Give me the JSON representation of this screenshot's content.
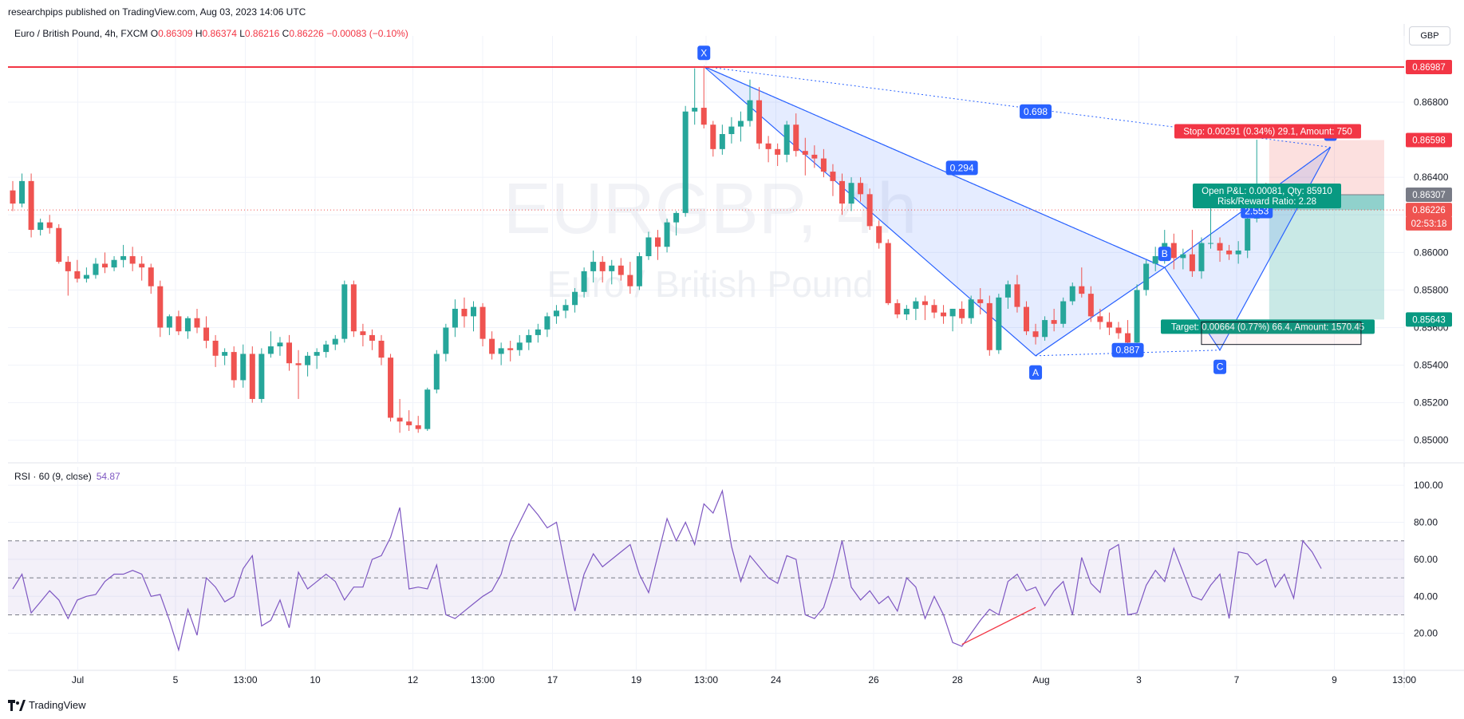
{
  "header": {
    "published": "researchpips published on TradingView.com, Aug 03, 2023 14:06 UTC"
  },
  "symbol": {
    "name": "Euro / British Pound, 4h, FXCM",
    "o_label": "O",
    "o": "0.86309",
    "h_label": "H",
    "h": "0.86374",
    "l_label": "L",
    "l": "0.86216",
    "c_label": "C",
    "c": "0.86226",
    "change": "−0.00083 (−0.10%)"
  },
  "currency": "GBP",
  "watermark": {
    "line1": "EURGBP, 4h",
    "line2": "Euro / British Pound"
  },
  "rsi": {
    "label": "RSI · 60 (9, close)",
    "value": "54.87"
  },
  "footer": {
    "brand": "TradingView"
  },
  "colors": {
    "up": "#26a69a",
    "down": "#ef5350",
    "rsi": "#7e57c2",
    "pattern": "#2962ff",
    "hline": "#f23645"
  },
  "chart_data": [
    {
      "type": "candlestick",
      "ylim": [
        0.8488,
        0.8711
      ],
      "x_tick_labels": [
        "Jul",
        "5",
        "13:00",
        "10",
        "12",
        "13:00",
        "17",
        "19",
        "13:00",
        "24",
        "26",
        "28",
        "Aug",
        "3",
        "7",
        "9",
        "13:00"
      ],
      "x_tick_positions": [
        5,
        12,
        17,
        22,
        29,
        34,
        39,
        45,
        50,
        55,
        62,
        68,
        74,
        81,
        88,
        95,
        100
      ],
      "y_tick_labels": [
        "0.85000",
        "0.85200",
        "0.85400",
        "0.85600",
        "0.85800",
        "0.86000",
        "0.86200",
        "0.86400",
        "0.86800"
      ],
      "y_tick_values": [
        0.85,
        0.852,
        0.854,
        0.856,
        0.858,
        0.86,
        0.862,
        0.864,
        0.868
      ],
      "price_labels": [
        {
          "text": "0.86987",
          "value": 0.86987,
          "color": "#f23645"
        },
        {
          "text": "0.86598",
          "value": 0.86598,
          "color": "#f23645"
        },
        {
          "text": "0.86307",
          "value": 0.86307,
          "color": "#787b86"
        },
        {
          "text": "0.86226",
          "value": 0.86226,
          "color": "#ef5350"
        },
        {
          "text": "02:53:18",
          "value": 0.86155,
          "color": "#ef5350"
        },
        {
          "text": "0.85643",
          "value": 0.85643,
          "color": "#089981"
        }
      ],
      "horizontal_line": 0.86987,
      "ohlc": [
        [
          0.8633,
          0.8638,
          0.8622,
          0.8626
        ],
        [
          0.8626,
          0.8642,
          0.8624,
          0.8638
        ],
        [
          0.8638,
          0.8642,
          0.8608,
          0.8612
        ],
        [
          0.8612,
          0.8618,
          0.8609,
          0.8616
        ],
        [
          0.8616,
          0.862,
          0.861,
          0.8613
        ],
        [
          0.8613,
          0.8615,
          0.8594,
          0.8595
        ],
        [
          0.8595,
          0.8598,
          0.8577,
          0.859
        ],
        [
          0.859,
          0.8596,
          0.8584,
          0.8586
        ],
        [
          0.8586,
          0.8592,
          0.8584,
          0.8588
        ],
        [
          0.8588,
          0.8597,
          0.8586,
          0.8594
        ],
        [
          0.8594,
          0.86,
          0.8589,
          0.8592
        ],
        [
          0.8592,
          0.8598,
          0.859,
          0.8596
        ],
        [
          0.8596,
          0.8604,
          0.8592,
          0.8598
        ],
        [
          0.8598,
          0.8603,
          0.859,
          0.8594
        ],
        [
          0.8594,
          0.8598,
          0.8585,
          0.8592
        ],
        [
          0.8592,
          0.8594,
          0.8578,
          0.8582
        ],
        [
          0.8582,
          0.8585,
          0.8555,
          0.856
        ],
        [
          0.856,
          0.8567,
          0.8556,
          0.8566
        ],
        [
          0.8566,
          0.8569,
          0.8556,
          0.8558
        ],
        [
          0.8558,
          0.8566,
          0.8554,
          0.8565
        ],
        [
          0.8565,
          0.857,
          0.8557,
          0.856
        ],
        [
          0.856,
          0.8566,
          0.8549,
          0.8553
        ],
        [
          0.8553,
          0.8556,
          0.8539,
          0.8545
        ],
        [
          0.8545,
          0.8549,
          0.854,
          0.8547
        ],
        [
          0.8547,
          0.855,
          0.8528,
          0.8532
        ],
        [
          0.8532,
          0.8551,
          0.8528,
          0.8546
        ],
        [
          0.8546,
          0.855,
          0.852,
          0.8522
        ],
        [
          0.8522,
          0.8549,
          0.852,
          0.8546
        ],
        [
          0.8546,
          0.8558,
          0.8544,
          0.855
        ],
        [
          0.855,
          0.8555,
          0.8545,
          0.8552
        ],
        [
          0.8552,
          0.8556,
          0.8537,
          0.8541
        ],
        [
          0.8541,
          0.8548,
          0.8522,
          0.854
        ],
        [
          0.854,
          0.8547,
          0.8534,
          0.8545
        ],
        [
          0.8545,
          0.8549,
          0.8538,
          0.8547
        ],
        [
          0.8547,
          0.8553,
          0.8544,
          0.8551
        ],
        [
          0.8551,
          0.8556,
          0.8548,
          0.8554
        ],
        [
          0.8554,
          0.8585,
          0.8552,
          0.8583
        ],
        [
          0.8583,
          0.8585,
          0.8555,
          0.8558
        ],
        [
          0.8558,
          0.8562,
          0.855,
          0.8556
        ],
        [
          0.8556,
          0.8559,
          0.8548,
          0.8553
        ],
        [
          0.8553,
          0.8556,
          0.854,
          0.8544
        ],
        [
          0.8544,
          0.8546,
          0.851,
          0.8512
        ],
        [
          0.8512,
          0.8522,
          0.8504,
          0.851
        ],
        [
          0.851,
          0.8516,
          0.8505,
          0.8508
        ],
        [
          0.8508,
          0.8513,
          0.8504,
          0.8506
        ],
        [
          0.8506,
          0.8528,
          0.8505,
          0.8527
        ],
        [
          0.8527,
          0.8548,
          0.8525,
          0.8546
        ],
        [
          0.8546,
          0.8562,
          0.8542,
          0.856
        ],
        [
          0.856,
          0.8575,
          0.8555,
          0.857
        ],
        [
          0.857,
          0.8576,
          0.856,
          0.8566
        ],
        [
          0.8566,
          0.8574,
          0.8558,
          0.8571
        ],
        [
          0.8571,
          0.8573,
          0.855,
          0.8554
        ],
        [
          0.8554,
          0.8558,
          0.8543,
          0.8546
        ],
        [
          0.8546,
          0.8552,
          0.854,
          0.8549
        ],
        [
          0.8549,
          0.8553,
          0.8542,
          0.8548
        ],
        [
          0.8548,
          0.8556,
          0.8545,
          0.8552
        ],
        [
          0.8552,
          0.8559,
          0.8548,
          0.8556
        ],
        [
          0.8556,
          0.8562,
          0.8552,
          0.8559
        ],
        [
          0.8559,
          0.8568,
          0.8555,
          0.8566
        ],
        [
          0.8566,
          0.8572,
          0.8562,
          0.8569
        ],
        [
          0.8569,
          0.8575,
          0.8565,
          0.8572
        ],
        [
          0.8572,
          0.8581,
          0.8568,
          0.8579
        ],
        [
          0.8579,
          0.8592,
          0.8576,
          0.859
        ],
        [
          0.859,
          0.8601,
          0.8584,
          0.8595
        ],
        [
          0.8595,
          0.8598,
          0.8584,
          0.859
        ],
        [
          0.859,
          0.8596,
          0.8583,
          0.8593
        ],
        [
          0.8593,
          0.8597,
          0.8585,
          0.8588
        ],
        [
          0.8588,
          0.8595,
          0.8578,
          0.8582
        ],
        [
          0.8582,
          0.86,
          0.858,
          0.8598
        ],
        [
          0.8598,
          0.8611,
          0.8596,
          0.8608
        ],
        [
          0.8608,
          0.8612,
          0.8596,
          0.8603
        ],
        [
          0.8603,
          0.8618,
          0.86,
          0.8616
        ],
        [
          0.8616,
          0.8622,
          0.8609,
          0.8621
        ],
        [
          0.8621,
          0.8678,
          0.8619,
          0.8675
        ],
        [
          0.8675,
          0.8698,
          0.8668,
          0.8677
        ],
        [
          0.8677,
          0.8699,
          0.8666,
          0.8668
        ],
        [
          0.8668,
          0.867,
          0.8651,
          0.8655
        ],
        [
          0.8655,
          0.8668,
          0.8652,
          0.8663
        ],
        [
          0.8663,
          0.8672,
          0.8658,
          0.8667
        ],
        [
          0.8667,
          0.8675,
          0.8659,
          0.867
        ],
        [
          0.867,
          0.8692,
          0.8667,
          0.8681
        ],
        [
          0.8681,
          0.8688,
          0.8655,
          0.8658
        ],
        [
          0.8658,
          0.8662,
          0.8648,
          0.8655
        ],
        [
          0.8655,
          0.8658,
          0.8646,
          0.8652
        ],
        [
          0.8652,
          0.867,
          0.8648,
          0.8668
        ],
        [
          0.8668,
          0.8674,
          0.8651,
          0.8654
        ],
        [
          0.8654,
          0.8661,
          0.8641,
          0.8652
        ],
        [
          0.8652,
          0.8657,
          0.8645,
          0.865
        ],
        [
          0.865,
          0.8655,
          0.864,
          0.8643
        ],
        [
          0.8643,
          0.8647,
          0.863,
          0.8638
        ],
        [
          0.8638,
          0.8642,
          0.862,
          0.8626
        ],
        [
          0.8626,
          0.864,
          0.8622,
          0.8637
        ],
        [
          0.8637,
          0.864,
          0.8627,
          0.8631
        ],
        [
          0.8631,
          0.8634,
          0.8612,
          0.8614
        ],
        [
          0.8614,
          0.8617,
          0.8602,
          0.8605
        ],
        [
          0.8605,
          0.8607,
          0.8572,
          0.8573
        ],
        [
          0.8573,
          0.8575,
          0.8565,
          0.8567
        ],
        [
          0.8567,
          0.8572,
          0.8564,
          0.857
        ],
        [
          0.857,
          0.8576,
          0.8564,
          0.8574
        ],
        [
          0.8574,
          0.8577,
          0.8564,
          0.8572
        ],
        [
          0.8572,
          0.8575,
          0.8565,
          0.8568
        ],
        [
          0.8568,
          0.8572,
          0.8562,
          0.8566
        ],
        [
          0.8566,
          0.857,
          0.8558,
          0.857
        ],
        [
          0.857,
          0.8574,
          0.8562,
          0.8565
        ],
        [
          0.8565,
          0.8577,
          0.8562,
          0.8575
        ],
        [
          0.8575,
          0.8581,
          0.8567,
          0.8573
        ],
        [
          0.8573,
          0.8577,
          0.8545,
          0.8548
        ],
        [
          0.8548,
          0.8578,
          0.8546,
          0.8576
        ],
        [
          0.8576,
          0.8585,
          0.857,
          0.8583
        ],
        [
          0.8583,
          0.8588,
          0.8568,
          0.8571
        ],
        [
          0.8571,
          0.8574,
          0.8556,
          0.8558
        ],
        [
          0.8558,
          0.8562,
          0.8551,
          0.8555
        ],
        [
          0.8555,
          0.8566,
          0.8553,
          0.8564
        ],
        [
          0.8564,
          0.857,
          0.8558,
          0.8562
        ],
        [
          0.8562,
          0.8576,
          0.856,
          0.8574
        ],
        [
          0.8574,
          0.8584,
          0.8572,
          0.8582
        ],
        [
          0.8582,
          0.8592,
          0.8576,
          0.8578
        ],
        [
          0.8578,
          0.8582,
          0.8563,
          0.8566
        ],
        [
          0.8566,
          0.857,
          0.8559,
          0.8563
        ],
        [
          0.8563,
          0.8568,
          0.8556,
          0.856
        ],
        [
          0.856,
          0.8563,
          0.8554,
          0.8557
        ],
        [
          0.8557,
          0.8564,
          0.8548,
          0.8552
        ],
        [
          0.8552,
          0.8583,
          0.855,
          0.858
        ],
        [
          0.858,
          0.8596,
          0.8577,
          0.8594
        ],
        [
          0.8594,
          0.8603,
          0.859,
          0.8598
        ],
        [
          0.8598,
          0.8612,
          0.8594,
          0.8605
        ],
        [
          0.8605,
          0.861,
          0.8591,
          0.8597
        ],
        [
          0.8597,
          0.8602,
          0.8591,
          0.8599
        ],
        [
          0.8599,
          0.8612,
          0.8587,
          0.859
        ],
        [
          0.859,
          0.8608,
          0.8586,
          0.8605
        ],
        [
          0.8605,
          0.8627,
          0.8602,
          0.8605
        ],
        [
          0.8605,
          0.8608,
          0.8595,
          0.8601
        ],
        [
          0.8601,
          0.8604,
          0.8596,
          0.8599
        ],
        [
          0.8599,
          0.8606,
          0.8594,
          0.8601
        ],
        [
          0.8601,
          0.862,
          0.8597,
          0.8618
        ],
        [
          0.8618,
          0.866,
          0.8616,
          0.8631
        ],
        [
          0.8631,
          0.8637,
          0.8621,
          0.8623
        ]
      ],
      "harmonic_points": [
        {
          "label": "X",
          "bar": 75,
          "price": 0.8699
        },
        {
          "label": "A",
          "bar": 111,
          "price": 0.8545
        },
        {
          "label": "B",
          "bar": 125,
          "price": 0.8592
        },
        {
          "label": "C",
          "bar": 131,
          "price": 0.8548
        },
        {
          "label": "D",
          "bar": 143,
          "price": 0.8656
        }
      ],
      "ratios": [
        {
          "text": "0.294",
          "bar": 103,
          "price": 0.8645
        },
        {
          "text": "0.698",
          "bar": 111,
          "price": 0.8675
        },
        {
          "text": "0.887",
          "bar": 121,
          "price": 0.8548
        },
        {
          "text": "2.553",
          "bar": 135,
          "price": 0.8622
        }
      ],
      "position": {
        "entry": 0.86307,
        "stop": 0.86598,
        "target": 0.85643,
        "stop_label": "Stop: 0.00291 (0.34%) 29.1, Amount: 750",
        "pnl_label": "Open P&L: 0.00081, Qty: 85910",
        "rr_label": "Risk/Reward Ratio: 2.28",
        "target_label": "Target: 0.00664 (0.77%) 66.4, Amount: 1570.45"
      }
    },
    {
      "type": "line",
      "name": "RSI",
      "ylim": [
        0,
        110
      ],
      "y_tick_labels": [
        "20.00",
        "40.00",
        "60.00",
        "80.00",
        "100.00"
      ],
      "y_tick_values": [
        20,
        40,
        60,
        80,
        100
      ],
      "bands": [
        70,
        50,
        30
      ],
      "values": [
        44,
        52,
        31,
        37,
        43,
        38,
        28,
        38,
        40,
        41,
        48,
        52,
        52,
        54,
        52,
        40,
        41,
        27,
        11,
        33,
        19,
        50,
        45,
        37,
        40,
        55,
        62,
        24,
        27,
        38,
        23,
        53,
        44,
        48,
        52,
        48,
        38,
        45,
        45,
        60,
        62,
        72,
        88,
        44,
        45,
        44,
        57,
        30,
        28,
        32,
        36,
        40,
        43,
        52,
        70,
        80,
        90,
        84,
        77,
        80,
        55,
        32,
        52,
        63,
        56,
        60,
        64,
        68,
        52,
        42,
        62,
        82,
        70,
        80,
        68,
        90,
        85,
        97,
        67,
        48,
        62,
        56,
        50,
        47,
        62,
        60,
        30,
        28,
        34,
        50,
        70,
        45,
        38,
        43,
        36,
        40,
        32,
        50,
        45,
        28,
        40,
        30,
        15,
        13,
        20,
        27,
        33,
        30,
        48,
        52,
        43,
        45,
        35,
        43,
        48,
        30,
        61,
        47,
        42,
        65,
        68,
        30,
        31,
        46,
        54,
        48,
        66,
        53,
        40,
        38,
        46,
        52,
        28,
        64,
        63,
        57,
        60,
        45,
        52,
        39,
        70,
        64,
        55
      ]
    }
  ]
}
